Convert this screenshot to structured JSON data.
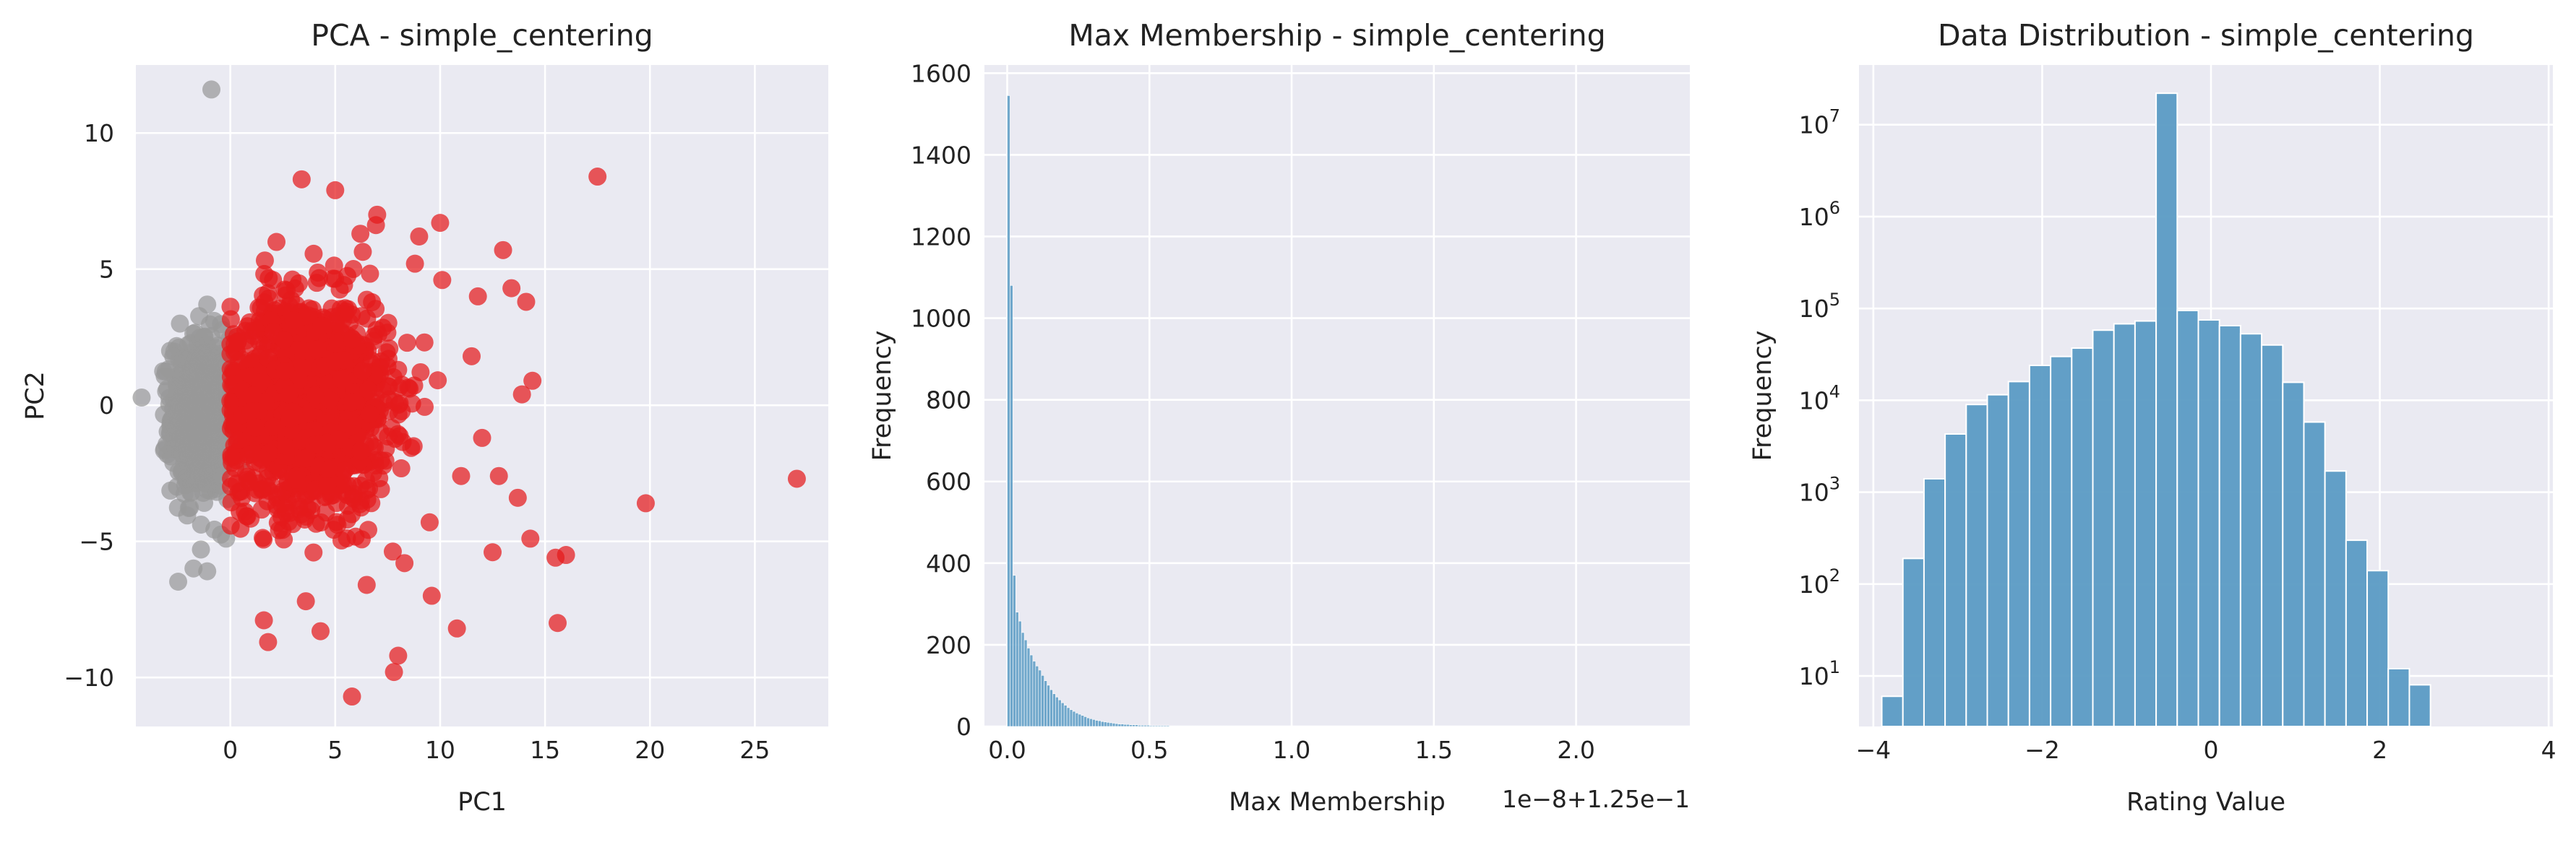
{
  "chart_data": [
    {
      "type": "scatter",
      "title": "PCA - simple_centering",
      "xlabel": "PC1",
      "ylabel": "PC2",
      "xlim": [
        -4.5,
        28.5
      ],
      "ylim": [
        -11.8,
        12.5
      ],
      "xticks": [
        0,
        5,
        10,
        15,
        20,
        25
      ],
      "yticks": [
        -10,
        -5,
        0,
        5,
        10
      ],
      "grid": true,
      "series": [
        {
          "color": "#999999",
          "cluster": {
            "n": 700,
            "cx": -1.4,
            "cy": -0.4,
            "sx": 0.7,
            "sy": 1.45
          },
          "points": [
            [
              -0.9,
              11.6
            ],
            [
              -1.1,
              3.7
            ],
            [
              -2.4,
              3.0
            ],
            [
              -3.0,
              0.6
            ],
            [
              -1.4,
              -5.3
            ],
            [
              -1.1,
              -6.1
            ],
            [
              -0.2,
              -4.9
            ],
            [
              -2.6,
              -0.3
            ],
            [
              -1.9,
              -3.2
            ]
          ]
        },
        {
          "color": "#e41a1c",
          "cluster": {
            "n": 1600,
            "cx": 3.8,
            "cy": 0.1,
            "sx": 1.9,
            "sy": 1.9
          },
          "points": [
            [
              27.0,
              -2.7
            ],
            [
              17.5,
              8.4
            ],
            [
              19.8,
              -3.6
            ],
            [
              15.6,
              -8.0
            ],
            [
              16.0,
              -5.5
            ],
            [
              15.5,
              -5.6
            ],
            [
              14.3,
              -4.9
            ],
            [
              13.0,
              5.7
            ],
            [
              13.4,
              4.3
            ],
            [
              14.1,
              3.8
            ],
            [
              12.5,
              -5.4
            ],
            [
              10.8,
              -8.2
            ],
            [
              9.6,
              -7.0
            ],
            [
              5.8,
              -10.7
            ],
            [
              7.8,
              -9.8
            ],
            [
              8.0,
              -9.2
            ],
            [
              1.6,
              -7.9
            ],
            [
              1.8,
              -8.7
            ],
            [
              4.3,
              -8.3
            ],
            [
              3.6,
              -7.2
            ],
            [
              3.4,
              8.3
            ],
            [
              5.0,
              7.9
            ],
            [
              7.0,
              7.0
            ],
            [
              9.0,
              6.2
            ],
            [
              10.0,
              6.7
            ],
            [
              11.8,
              4.0
            ],
            [
              14.4,
              0.9
            ],
            [
              13.9,
              0.4
            ],
            [
              12.8,
              -2.6
            ],
            [
              13.7,
              -3.4
            ],
            [
              11.0,
              -2.6
            ],
            [
              6.5,
              -6.6
            ],
            [
              8.3,
              -5.8
            ],
            [
              10.1,
              4.6
            ],
            [
              8.8,
              5.2
            ],
            [
              6.2,
              6.3
            ],
            [
              2.2,
              6.0
            ],
            [
              12.0,
              -1.2
            ],
            [
              11.5,
              1.8
            ],
            [
              9.5,
              -4.3
            ]
          ]
        }
      ]
    },
    {
      "type": "bar",
      "title": "Max Membership - simple_centering",
      "xlabel": "Max Membership",
      "ylabel": "Frequency",
      "x_offset_text": "1e−8+1.25e−1",
      "xlim": [
        -0.08,
        2.4
      ],
      "ylim": [
        0,
        1620
      ],
      "xticks": [
        0.0,
        0.5,
        1.0,
        1.5,
        2.0
      ],
      "yticks": [
        0,
        200,
        400,
        600,
        800,
        1000,
        1200,
        1400,
        1600
      ],
      "bin_start": 0.0,
      "bin_width": 0.01,
      "color": "#5b9bc4",
      "values": [
        1545,
        1080,
        370,
        280,
        258,
        230,
        212,
        192,
        175,
        160,
        148,
        138,
        125,
        112,
        101,
        90,
        80,
        72,
        65,
        58,
        52,
        46,
        41,
        37,
        33,
        30,
        27,
        24,
        21,
        19,
        17,
        15,
        14,
        12,
        11,
        10,
        9,
        8,
        7,
        6,
        6,
        5,
        5,
        4,
        4,
        4,
        3,
        3,
        3,
        3,
        2,
        2,
        2,
        2,
        2,
        2,
        2,
        1,
        1,
        1,
        1,
        1,
        1,
        1,
        1,
        1,
        1,
        1,
        1,
        1,
        1,
        1,
        1,
        1,
        1,
        1,
        1,
        1,
        1,
        1
      ]
    },
    {
      "type": "bar",
      "title": "Data Distribution - simple_centering",
      "xlabel": "Rating Value",
      "ylabel": "Frequency",
      "yscale": "log",
      "xlim": [
        -4.17,
        4.05
      ],
      "ylim_log10": [
        0.45,
        7.65
      ],
      "xticks": [
        -4,
        -2,
        0,
        2,
        4
      ],
      "yticks_exp": [
        1,
        2,
        3,
        4,
        5,
        6,
        7
      ],
      "bin_start": -3.9,
      "bin_width": 0.25,
      "color": "#5b9bc4",
      "values": [
        6,
        190,
        1400,
        4300,
        9000,
        11500,
        16000,
        24000,
        30000,
        37000,
        58000,
        68000,
        73000,
        22000000,
        95000,
        75000,
        65000,
        53000,
        40000,
        15700,
        5800,
        1700,
        300,
        140,
        12,
        8
      ]
    }
  ]
}
